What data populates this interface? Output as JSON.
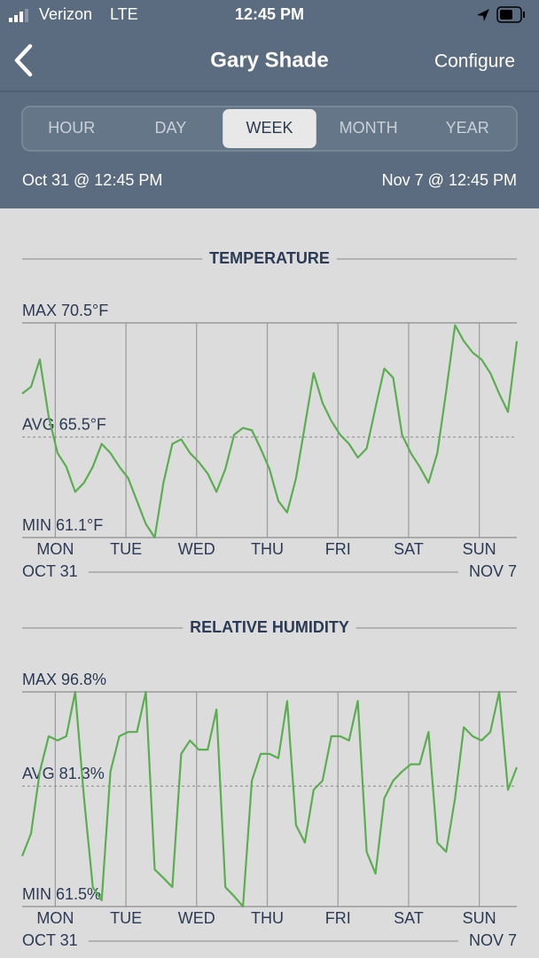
{
  "status_bar": {
    "carrier": "Verizon",
    "network": "LTE",
    "time": "12:45 PM"
  },
  "nav": {
    "title": "Gary Shade",
    "action": "Configure"
  },
  "tabs": {
    "items": [
      "HOUR",
      "DAY",
      "WEEK",
      "MONTH",
      "YEAR"
    ],
    "selected": 2
  },
  "range": {
    "start": "Oct 31 @ 12:45 PM",
    "end": "Nov 7 @ 12:45 PM"
  },
  "chart_data": [
    {
      "type": "line",
      "title": "TEMPERATURE",
      "color": "#5aae50",
      "x": [
        0,
        3,
        6,
        9,
        12,
        15,
        18,
        21,
        24,
        27,
        30,
        33,
        36,
        39,
        42,
        45,
        48,
        51,
        54,
        57,
        60,
        63,
        66,
        69,
        72,
        75,
        78,
        81,
        84,
        87,
        90,
        93,
        96,
        99,
        102,
        105,
        108,
        111,
        114,
        117,
        120,
        123,
        126,
        129,
        132,
        135,
        138,
        141,
        144,
        147,
        150,
        153,
        156,
        159,
        162,
        165,
        168
      ],
      "values": [
        67.4,
        67.7,
        68.9,
        66.4,
        64.8,
        64.2,
        63.1,
        63.5,
        64.2,
        65.2,
        64.8,
        64.2,
        63.7,
        62.7,
        61.7,
        61.1,
        63.5,
        65.2,
        65.4,
        64.8,
        64.4,
        63.9,
        63.1,
        64.1,
        65.6,
        65.9,
        65.8,
        65.0,
        64.1,
        62.7,
        62.2,
        63.7,
        66.0,
        68.3,
        67.0,
        66.2,
        65.6,
        65.2,
        64.6,
        65.0,
        66.8,
        68.5,
        68.1,
        65.6,
        64.8,
        64.2,
        63.5,
        64.8,
        67.5,
        70.4,
        69.7,
        69.2,
        68.9,
        68.3,
        67.4,
        66.6,
        69.7
      ],
      "xlim": [
        0,
        168
      ],
      "ylim": [
        61.1,
        70.5
      ],
      "xticks": [
        {
          "value": 11.25,
          "label": "MON"
        },
        {
          "value": 35.25,
          "label": "TUE"
        },
        {
          "value": 59.25,
          "label": "WED"
        },
        {
          "value": 83.25,
          "label": "THU"
        },
        {
          "value": 107.25,
          "label": "FRI"
        },
        {
          "value": 131.25,
          "label": "SAT"
        },
        {
          "value": 155.25,
          "label": "SUN"
        }
      ],
      "yticks": [
        {
          "value": 61.1,
          "label": "MIN 61.1°F"
        },
        {
          "value": 65.5,
          "label": "AVG 65.5°F"
        },
        {
          "value": 70.5,
          "label": "MAX 70.5°F"
        }
      ],
      "start_label": "OCT 31",
      "end_label": "NOV 7"
    },
    {
      "type": "line",
      "title": "RELATIVE HUMIDITY",
      "color": "#5aae50",
      "x": [
        0,
        3,
        6,
        9,
        12,
        15,
        18,
        21,
        24,
        27,
        30,
        33,
        36,
        39,
        42,
        45,
        48,
        51,
        54,
        57,
        60,
        63,
        66,
        69,
        72,
        75,
        78,
        81,
        84,
        87,
        90,
        93,
        96,
        99,
        102,
        105,
        108,
        111,
        114,
        117,
        120,
        123,
        126,
        129,
        132,
        135,
        138,
        141,
        144,
        147,
        150,
        153,
        156,
        159,
        162,
        165,
        168
      ],
      "values": [
        69.8,
        73.5,
        83.7,
        89.5,
        88.8,
        89.5,
        96.8,
        79.3,
        64.7,
        62.5,
        83.7,
        89.5,
        90.2,
        90.2,
        96.8,
        67.6,
        66.2,
        64.7,
        86.6,
        88.8,
        87.3,
        87.3,
        93.9,
        64.7,
        63.2,
        61.5,
        82.2,
        86.6,
        86.6,
        85.9,
        95.3,
        74.9,
        72.0,
        80.7,
        82.2,
        89.5,
        89.5,
        88.8,
        95.3,
        70.5,
        66.9,
        79.3,
        82.2,
        83.7,
        84.9,
        84.9,
        90.2,
        72.0,
        70.5,
        79.3,
        91.0,
        89.5,
        88.8,
        90.2,
        96.8,
        80.7,
        84.4
      ],
      "xlim": [
        0,
        168
      ],
      "ylim": [
        61.5,
        96.8
      ],
      "xticks": [
        {
          "value": 11.25,
          "label": "MON"
        },
        {
          "value": 35.25,
          "label": "TUE"
        },
        {
          "value": 59.25,
          "label": "WED"
        },
        {
          "value": 83.25,
          "label": "THU"
        },
        {
          "value": 107.25,
          "label": "FRI"
        },
        {
          "value": 131.25,
          "label": "SAT"
        },
        {
          "value": 155.25,
          "label": "SUN"
        }
      ],
      "yticks": [
        {
          "value": 61.5,
          "label": "MIN 61.5%"
        },
        {
          "value": 81.3,
          "label": "AVG 81.3%"
        },
        {
          "value": 96.8,
          "label": "MAX 96.8%"
        }
      ],
      "start_label": "OCT 31",
      "end_label": "NOV 7"
    }
  ]
}
